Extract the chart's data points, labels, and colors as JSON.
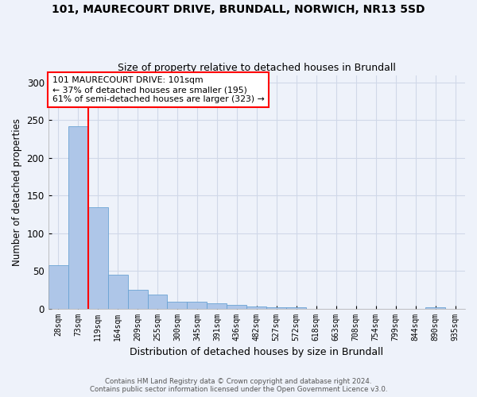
{
  "title1": "101, MAURECOURT DRIVE, BRUNDALL, NORWICH, NR13 5SD",
  "title2": "Size of property relative to detached houses in Brundall",
  "xlabel": "Distribution of detached houses by size in Brundall",
  "ylabel": "Number of detached properties",
  "footer1": "Contains HM Land Registry data © Crown copyright and database right 2024.",
  "footer2": "Contains public sector information licensed under the Open Government Licence v3.0.",
  "categories": [
    "28sqm",
    "73sqm",
    "119sqm",
    "164sqm",
    "209sqm",
    "255sqm",
    "300sqm",
    "345sqm",
    "391sqm",
    "436sqm",
    "482sqm",
    "527sqm",
    "572sqm",
    "618sqm",
    "663sqm",
    "708sqm",
    "754sqm",
    "799sqm",
    "844sqm",
    "890sqm",
    "935sqm"
  ],
  "values": [
    58,
    242,
    135,
    45,
    25,
    18,
    9,
    9,
    7,
    5,
    3,
    2,
    2,
    0,
    0,
    0,
    0,
    0,
    0,
    2,
    0
  ],
  "bar_color": "#aec6e8",
  "bar_edge_color": "#6aa3d4",
  "red_line_x": 1.5,
  "annotation_line1": "101 MAURECOURT DRIVE: 101sqm",
  "annotation_line2": "← 37% of detached houses are smaller (195)",
  "annotation_line3": "61% of semi-detached houses are larger (323) →",
  "ylim": [
    0,
    310
  ],
  "yticks": [
    0,
    50,
    100,
    150,
    200,
    250,
    300
  ],
  "background_color": "#eef2fa",
  "grid_color": "#d0d8e8",
  "title1_fontsize": 10,
  "title2_fontsize": 9,
  "xlabel_fontsize": 9,
  "ylabel_fontsize": 8.5,
  "annotation_fontsize": 7.8
}
